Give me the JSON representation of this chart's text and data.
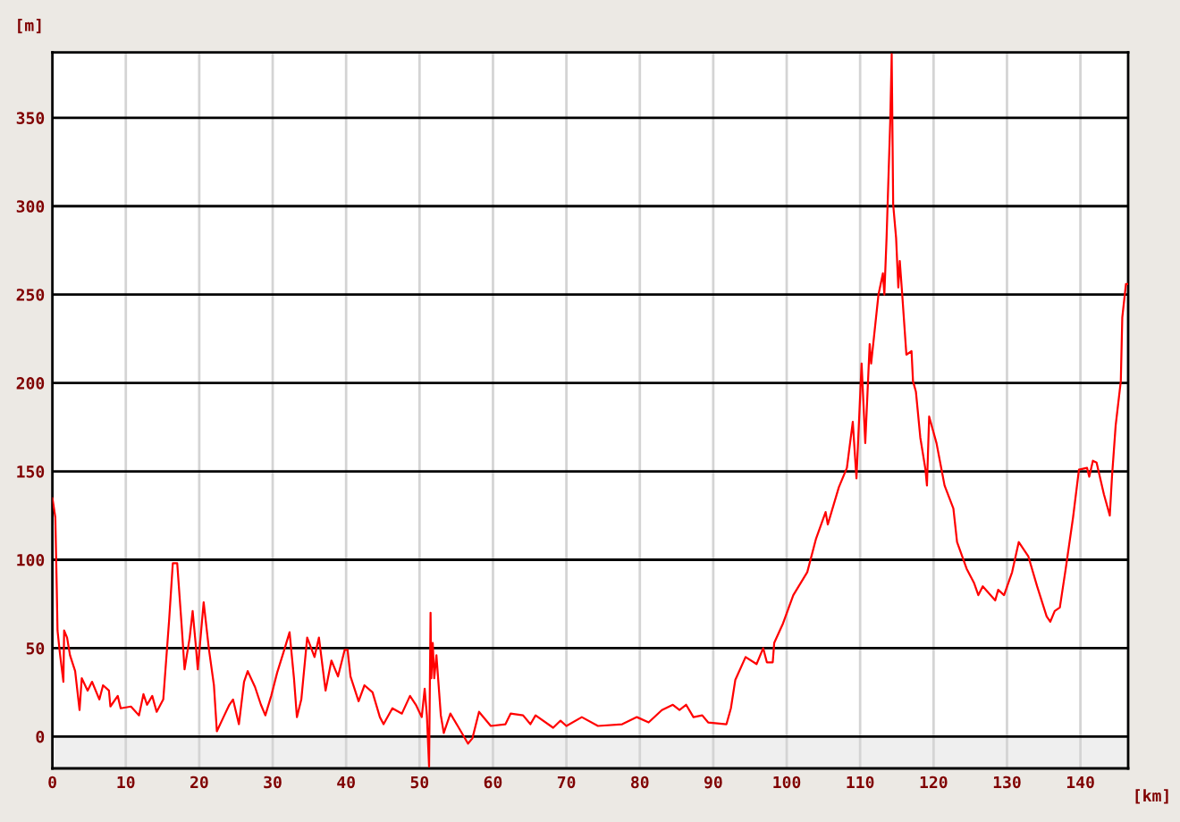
{
  "chart_data": {
    "type": "line",
    "xlabel": "[km]",
    "ylabel": "[m]",
    "x": [
      0,
      0.4,
      0.6,
      0.7,
      1.0,
      1.5,
      1.6,
      2.0,
      2.4,
      3.1,
      3.7,
      4.0,
      4.8,
      5.4,
      6.4,
      6.9,
      7.7,
      7.9,
      8.9,
      9.3,
      10.7,
      11.8,
      12.4,
      12.9,
      13.6,
      14.2,
      15.1,
      15.9,
      16.4,
      17.0,
      17.6,
      18.0,
      18.7,
      19.1,
      19.5,
      19.8,
      20.6,
      21.3,
      22.0,
      22.4,
      23.3,
      24.1,
      24.6,
      25.4,
      26.1,
      26.6,
      27.6,
      28.4,
      29.0,
      29.8,
      30.6,
      31.5,
      32.3,
      32.9,
      33.3,
      33.9,
      34.7,
      35.7,
      36.3,
      37.2,
      38.0,
      38.9,
      39.8,
      40.2,
      40.6,
      41.7,
      42.5,
      43.6,
      44.6,
      45.1,
      46.3,
      47.6,
      48.7,
      49.5,
      50.3,
      50.7,
      51.0,
      51.3,
      51.5,
      51.6,
      51.8,
      52.0,
      52.3,
      52.9,
      53.3,
      54.2,
      55.2,
      56.6,
      57.2,
      58.1,
      59.7,
      61.7,
      62.4,
      64.1,
      65.1,
      65.8,
      68.2,
      69.2,
      70.0,
      72.1,
      74.3,
      77.6,
      79.6,
      81.2,
      83.0,
      84.5,
      85.4,
      86.3,
      87.3,
      88.5,
      89.3,
      91.8,
      92.4,
      93.0,
      94.4,
      95.9,
      96.8,
      97.3,
      98.1,
      98.3,
      99.5,
      100.9,
      102.8,
      104.0,
      105.3,
      105.6,
      107.1,
      108.2,
      109.0,
      109.5,
      110.2,
      110.7,
      111.3,
      111.5,
      112.5,
      113.1,
      113.3,
      113.6,
      114.1,
      114.3,
      114.5,
      114.9,
      115.2,
      115.4,
      115.7,
      116.3,
      117.0,
      117.2,
      117.6,
      118.2,
      118.9,
      119.1,
      119.4,
      120.4,
      121.5,
      122.7,
      123.2,
      124.5,
      125.5,
      126.1,
      126.7,
      128.4,
      128.8,
      129.6,
      130.7,
      131.6,
      132.9,
      134.1,
      135.4,
      135.9,
      136.5,
      137.2,
      138.0,
      139.0,
      139.8,
      140.9,
      141.2,
      141.7,
      142.2,
      143.2,
      144.0,
      144.3,
      144.8,
      145.5,
      145.7,
      146.2,
      146.5
    ],
    "series": [
      {
        "color": "#ff0000",
        "values": [
          135,
          124,
          83,
          60,
          48,
          31,
          60,
          56,
          46,
          37,
          15,
          33,
          26,
          31,
          21,
          29,
          26,
          17,
          23,
          16,
          17,
          12,
          24,
          18,
          23,
          14,
          21,
          66,
          98,
          98,
          63,
          38,
          56,
          71,
          53,
          38,
          76,
          50,
          29,
          3,
          11,
          18,
          21,
          7,
          31,
          37,
          28,
          18,
          12,
          23,
          36,
          48,
          59,
          33,
          11,
          21,
          56,
          45,
          56,
          26,
          43,
          34,
          49,
          49,
          34,
          20,
          29,
          25,
          11,
          7,
          16,
          13,
          23,
          18,
          11,
          27,
          12,
          -17,
          70,
          33,
          53,
          33,
          46,
          12,
          2,
          13,
          6,
          -4,
          -1,
          14,
          6,
          7,
          13,
          12,
          7,
          12,
          5,
          9,
          6,
          11,
          6,
          7,
          11,
          8,
          15,
          18,
          15,
          18,
          11,
          12,
          8,
          7,
          16,
          32,
          45,
          41,
          50,
          42,
          42,
          53,
          64,
          80,
          93,
          112,
          127,
          120,
          141,
          152,
          178,
          146,
          211,
          166,
          222,
          211,
          250,
          262,
          250,
          282,
          348,
          386,
          301,
          282,
          254,
          269,
          252,
          216,
          218,
          201,
          195,
          169,
          151,
          142,
          181,
          166,
          142,
          129,
          110,
          95,
          87,
          80,
          85,
          77,
          83,
          80,
          93,
          110,
          102,
          85,
          68,
          65,
          71,
          73,
          95,
          124,
          151,
          152,
          147,
          156,
          155,
          137,
          125,
          147,
          176,
          201,
          237,
          256,
          256
        ]
      }
    ],
    "xlim": [
      0,
      146.5
    ],
    "ylim": [
      -18,
      387
    ],
    "xticks": [
      0,
      10,
      20,
      30,
      40,
      50,
      60,
      70,
      80,
      90,
      100,
      110,
      120,
      130,
      140
    ],
    "yticks": [
      0,
      50,
      100,
      150,
      200,
      250,
      300,
      350
    ],
    "grid": true,
    "bands": [
      {
        "axis": "y",
        "from": -18,
        "to": 0,
        "color": "#efefef"
      }
    ]
  }
}
